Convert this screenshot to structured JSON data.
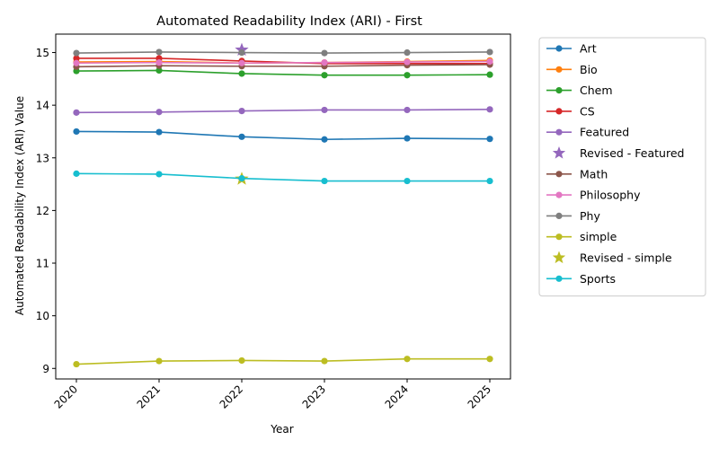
{
  "chart_data": {
    "type": "line",
    "title": "Automated Readability Index (ARI) - First",
    "xlabel": "Year",
    "ylabel": "Automated Readability Index (ARI) Value",
    "x": [
      "2020",
      "2021",
      "2022",
      "2023",
      "2024",
      "2025"
    ],
    "x_tick_rotation_deg": 45,
    "ylim": [
      8.8,
      15.35
    ],
    "y_ticks": [
      9,
      10,
      11,
      12,
      13,
      14,
      15
    ],
    "grid": false,
    "legend_position": "outside-right",
    "series": [
      {
        "name": "Art",
        "color": "#1f77b4",
        "marker": "circle",
        "values": [
          13.5,
          13.49,
          13.4,
          13.35,
          13.37,
          13.36
        ]
      },
      {
        "name": "Bio",
        "color": "#ff7f0e",
        "marker": "circle",
        "values": [
          14.82,
          14.83,
          14.8,
          14.81,
          14.83,
          14.85
        ]
      },
      {
        "name": "Chem",
        "color": "#2ca02c",
        "marker": "circle",
        "values": [
          14.65,
          14.66,
          14.6,
          14.57,
          14.57,
          14.58
        ]
      },
      {
        "name": "CS",
        "color": "#d62728",
        "marker": "circle",
        "values": [
          14.89,
          14.89,
          14.84,
          14.79,
          14.79,
          14.79
        ]
      },
      {
        "name": "Featured",
        "color": "#9467bd",
        "marker": "circle",
        "values": [
          13.86,
          13.87,
          13.89,
          13.91,
          13.91,
          13.92
        ]
      },
      {
        "name": "Revised - Featured",
        "color": "#9467bd",
        "marker": "star",
        "points": [
          {
            "x": "2022",
            "y": 15.05
          }
        ]
      },
      {
        "name": "Math",
        "color": "#8c564b",
        "marker": "circle",
        "values": [
          14.73,
          14.75,
          14.74,
          14.74,
          14.76,
          14.77
        ]
      },
      {
        "name": "Philosophy",
        "color": "#e377c2",
        "marker": "circle",
        "values": [
          14.8,
          14.81,
          14.8,
          14.81,
          14.82,
          14.83
        ]
      },
      {
        "name": "Phy",
        "color": "#7f7f7f",
        "marker": "circle",
        "values": [
          14.99,
          15.01,
          15.0,
          14.99,
          15.0,
          15.01
        ]
      },
      {
        "name": "simple",
        "color": "#bcbd22",
        "marker": "circle",
        "values": [
          9.08,
          9.14,
          9.15,
          9.14,
          9.18,
          9.18
        ]
      },
      {
        "name": "Revised - simple",
        "color": "#bcbd22",
        "marker": "star",
        "points": [
          {
            "x": "2022",
            "y": 12.6
          }
        ]
      },
      {
        "name": "Sports",
        "color": "#17becf",
        "marker": "circle",
        "values": [
          12.7,
          12.69,
          12.61,
          12.56,
          12.56,
          12.56
        ]
      }
    ]
  }
}
